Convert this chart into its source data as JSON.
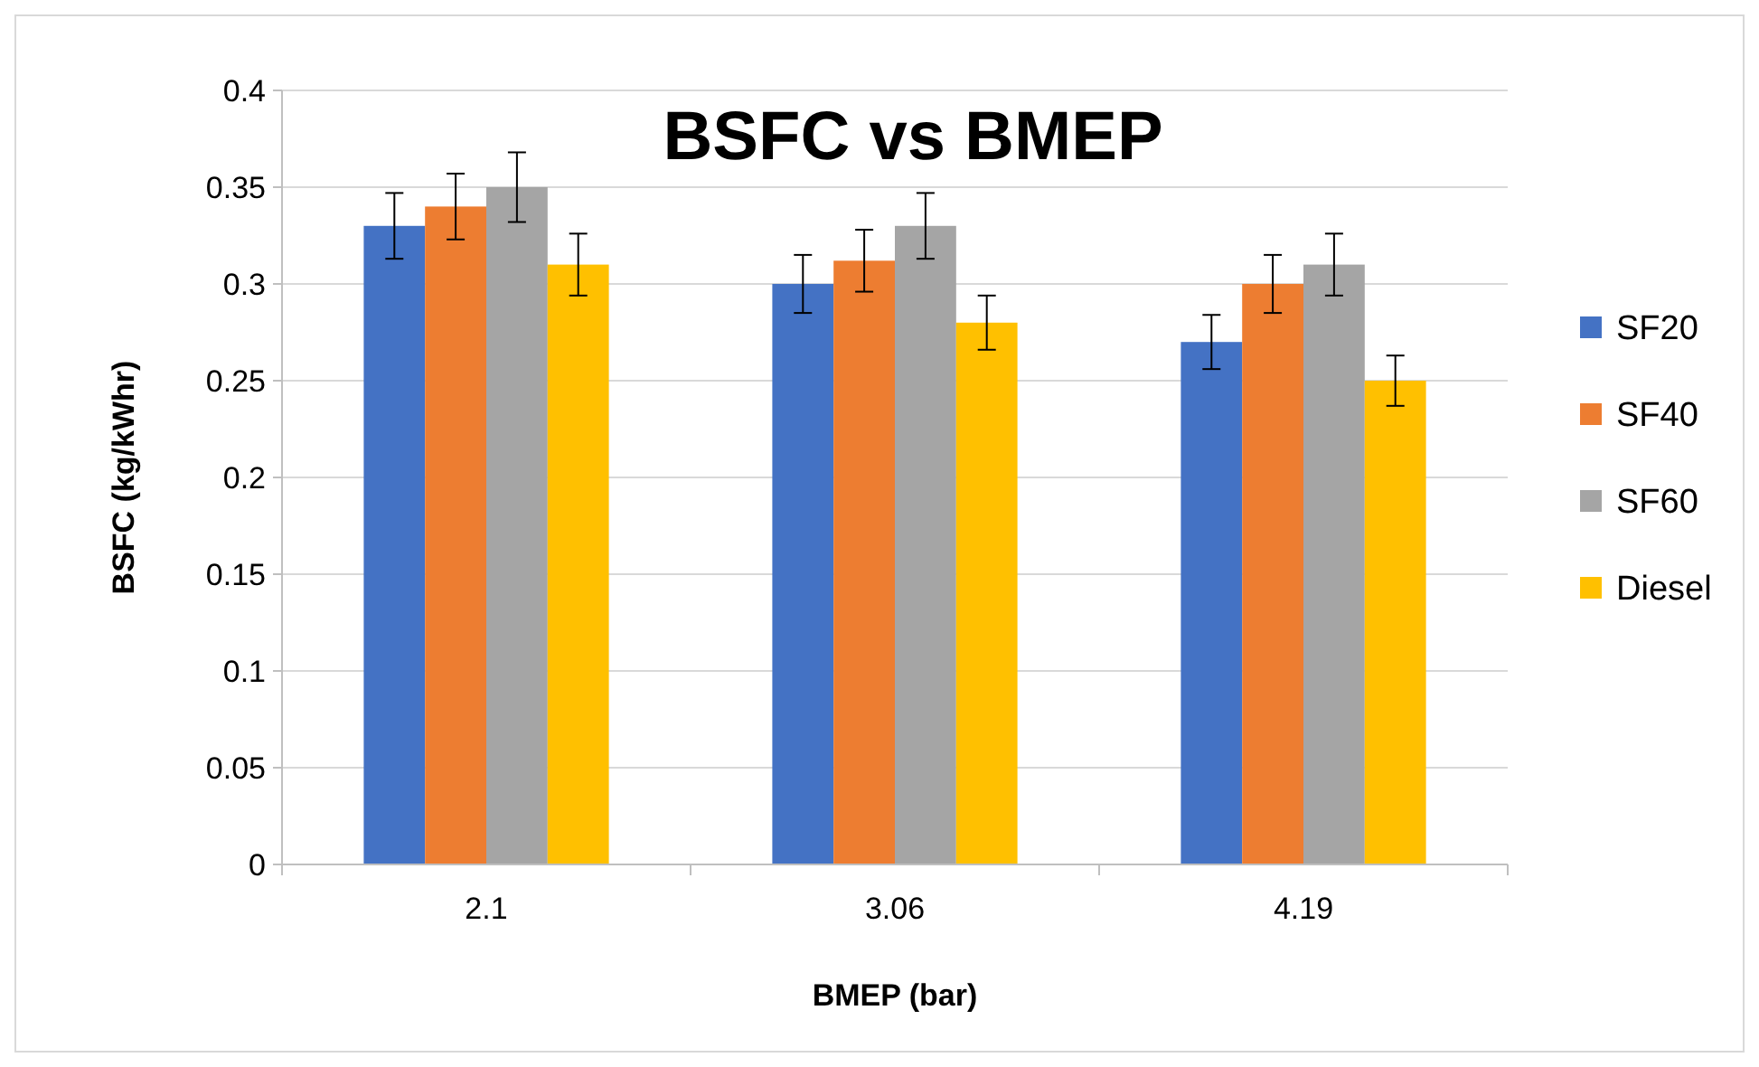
{
  "chart_data": {
    "type": "bar",
    "title": "BSFC vs BMEP",
    "xlabel": "BMEP (bar)",
    "ylabel": "BSFC (kg/kWhr)",
    "categories": [
      "2.1",
      "3.06",
      "4.19"
    ],
    "series": [
      {
        "name": "SF20",
        "color": "#4472c4",
        "values": [
          0.33,
          0.3,
          0.27
        ],
        "errors": [
          0.017,
          0.015,
          0.014
        ]
      },
      {
        "name": "SF40",
        "color": "#ed7d31",
        "values": [
          0.34,
          0.312,
          0.3
        ],
        "errors": [
          0.017,
          0.016,
          0.015
        ]
      },
      {
        "name": "SF60",
        "color": "#a5a5a5",
        "values": [
          0.35,
          0.33,
          0.31
        ],
        "errors": [
          0.018,
          0.017,
          0.016
        ]
      },
      {
        "name": "Diesel",
        "color": "#ffc000",
        "values": [
          0.31,
          0.28,
          0.25
        ],
        "errors": [
          0.016,
          0.014,
          0.013
        ]
      }
    ],
    "ylim": [
      0,
      0.4
    ],
    "yticks": [
      0,
      0.05,
      0.1,
      0.15,
      0.2,
      0.25,
      0.3,
      0.35,
      0.4
    ],
    "grid": "y",
    "legend": "right"
  }
}
